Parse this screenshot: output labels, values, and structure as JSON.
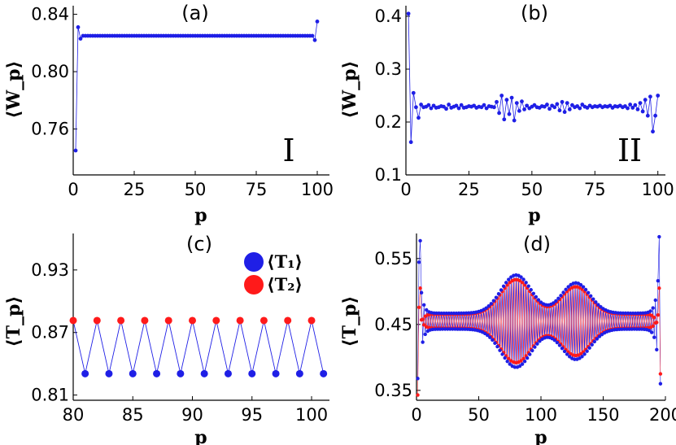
{
  "colors": {
    "blue": "#1f1fe6",
    "red": "#ff1a1a",
    "axis": "#000000"
  },
  "chart_data": [
    {
      "id": "a",
      "type": "line",
      "title": "(a)",
      "annotation": "I",
      "xlabel": "p",
      "ylabel": "⟨W_p⟩",
      "xlim": [
        0,
        105
      ],
      "ylim": [
        0.728,
        0.846
      ],
      "xticks": [
        0,
        25,
        50,
        75,
        100
      ],
      "xtick_labels": [
        "0",
        "25",
        "50",
        "75",
        "100"
      ],
      "yticks": [
        0.76,
        0.8,
        0.84
      ],
      "ytick_labels": [
        "0.76",
        "0.80",
        "0.84"
      ],
      "series": [
        {
          "name": "W_p",
          "color": "#1f1fe6",
          "x": [
            1,
            2,
            3,
            4,
            5,
            6,
            7,
            8,
            9,
            10,
            11,
            12,
            13,
            14,
            15,
            16,
            17,
            18,
            19,
            20,
            21,
            22,
            23,
            24,
            25,
            26,
            27,
            28,
            29,
            30,
            31,
            32,
            33,
            34,
            35,
            36,
            37,
            38,
            39,
            40,
            41,
            42,
            43,
            44,
            45,
            46,
            47,
            48,
            49,
            50,
            51,
            52,
            53,
            54,
            55,
            56,
            57,
            58,
            59,
            60,
            61,
            62,
            63,
            64,
            65,
            66,
            67,
            68,
            69,
            70,
            71,
            72,
            73,
            74,
            75,
            76,
            77,
            78,
            79,
            80,
            81,
            82,
            83,
            84,
            85,
            86,
            87,
            88,
            89,
            90,
            91,
            92,
            93,
            94,
            95,
            96,
            97,
            98,
            99,
            100
          ],
          "y": [
            0.745,
            0.831,
            0.823,
            0.825,
            0.825,
            0.825,
            0.825,
            0.825,
            0.825,
            0.825,
            0.825,
            0.825,
            0.825,
            0.825,
            0.825,
            0.825,
            0.825,
            0.825,
            0.825,
            0.825,
            0.825,
            0.825,
            0.825,
            0.825,
            0.825,
            0.825,
            0.825,
            0.825,
            0.825,
            0.825,
            0.825,
            0.825,
            0.825,
            0.825,
            0.825,
            0.825,
            0.825,
            0.825,
            0.825,
            0.825,
            0.825,
            0.825,
            0.825,
            0.825,
            0.825,
            0.825,
            0.825,
            0.825,
            0.825,
            0.825,
            0.825,
            0.825,
            0.825,
            0.825,
            0.825,
            0.825,
            0.825,
            0.825,
            0.825,
            0.825,
            0.825,
            0.825,
            0.825,
            0.825,
            0.825,
            0.825,
            0.825,
            0.825,
            0.825,
            0.825,
            0.825,
            0.825,
            0.825,
            0.825,
            0.825,
            0.825,
            0.825,
            0.825,
            0.825,
            0.825,
            0.825,
            0.825,
            0.825,
            0.825,
            0.825,
            0.825,
            0.825,
            0.825,
            0.825,
            0.825,
            0.825,
            0.825,
            0.825,
            0.825,
            0.825,
            0.825,
            0.825,
            0.825,
            0.822,
            0.835
          ]
        }
      ]
    },
    {
      "id": "b",
      "type": "line",
      "title": "(b)",
      "annotation": "II",
      "xlabel": "p",
      "ylabel": "⟨W_p⟩",
      "xlim": [
        0,
        103
      ],
      "ylim": [
        0.1,
        0.42
      ],
      "xticks": [
        0,
        25,
        50,
        75,
        100
      ],
      "xtick_labels": [
        "0",
        "25",
        "50",
        "75",
        "100"
      ],
      "yticks": [
        0.1,
        0.2,
        0.3,
        0.4
      ],
      "ytick_labels": [
        "0.1",
        "0.2",
        "0.3",
        "0.4"
      ],
      "series": [
        {
          "name": "W_p",
          "color": "#1f1fe6",
          "x": [
            1,
            2,
            3,
            4,
            5,
            6,
            7,
            8,
            9,
            10,
            11,
            12,
            13,
            14,
            15,
            16,
            17,
            18,
            19,
            20,
            21,
            22,
            23,
            24,
            25,
            26,
            27,
            28,
            29,
            30,
            31,
            32,
            33,
            34,
            35,
            36,
            37,
            38,
            39,
            40,
            41,
            42,
            43,
            44,
            45,
            46,
            47,
            48,
            49,
            50,
            51,
            52,
            53,
            54,
            55,
            56,
            57,
            58,
            59,
            60,
            61,
            62,
            63,
            64,
            65,
            66,
            67,
            68,
            69,
            70,
            71,
            72,
            73,
            74,
            75,
            76,
            77,
            78,
            79,
            80,
            81,
            82,
            83,
            84,
            85,
            86,
            87,
            88,
            89,
            90,
            91,
            92,
            93,
            94,
            95,
            96,
            97,
            98,
            99,
            100
          ],
          "y": [
            0.405,
            0.162,
            0.255,
            0.228,
            0.208,
            0.233,
            0.228,
            0.229,
            0.232,
            0.226,
            0.231,
            0.227,
            0.228,
            0.23,
            0.229,
            0.225,
            0.233,
            0.227,
            0.229,
            0.231,
            0.226,
            0.232,
            0.227,
            0.228,
            0.23,
            0.229,
            0.231,
            0.227,
            0.229,
            0.228,
            0.232,
            0.226,
            0.23,
            0.229,
            0.228,
            0.238,
            0.217,
            0.25,
            0.205,
            0.242,
            0.215,
            0.246,
            0.203,
            0.236,
            0.221,
            0.239,
            0.224,
            0.231,
            0.226,
            0.229,
            0.232,
            0.228,
            0.227,
            0.23,
            0.229,
            0.233,
            0.225,
            0.231,
            0.228,
            0.234,
            0.222,
            0.238,
            0.219,
            0.236,
            0.224,
            0.232,
            0.228,
            0.23,
            0.226,
            0.233,
            0.229,
            0.227,
            0.231,
            0.228,
            0.23,
            0.229,
            0.231,
            0.228,
            0.23,
            0.229,
            0.231,
            0.227,
            0.23,
            0.229,
            0.231,
            0.228,
            0.23,
            0.226,
            0.233,
            0.227,
            0.232,
            0.224,
            0.236,
            0.22,
            0.242,
            0.212,
            0.248,
            0.182,
            0.212,
            0.25
          ]
        }
      ]
    },
    {
      "id": "c",
      "type": "line",
      "title": "(c)",
      "xlabel": "p",
      "ylabel": "⟨T_p⟩",
      "xlim": [
        80,
        101.5
      ],
      "ylim": [
        0.805,
        0.965
      ],
      "xticks": [
        80,
        85,
        90,
        95,
        100
      ],
      "xtick_labels": [
        "80",
        "85",
        "90",
        "95",
        "100"
      ],
      "yticks": [
        0.81,
        0.87,
        0.93
      ],
      "ytick_labels": [
        "0.81",
        "0.87",
        "0.93"
      ],
      "legend": [
        {
          "label": "⟨T₁⟩",
          "color": "#1f1fe6"
        },
        {
          "label": "⟨T₂⟩",
          "color": "#ff1a1a"
        }
      ],
      "line": {
        "x": [
          80,
          81,
          82,
          83,
          84,
          85,
          86,
          87,
          88,
          89,
          90,
          91,
          92,
          93,
          94,
          95,
          96,
          97,
          98,
          99,
          100,
          101
        ],
        "y": [
          0.8815,
          0.8305,
          0.8815,
          0.8305,
          0.8815,
          0.8305,
          0.8815,
          0.8305,
          0.8815,
          0.8305,
          0.8815,
          0.8305,
          0.8815,
          0.8305,
          0.8815,
          0.8305,
          0.8815,
          0.8305,
          0.8815,
          0.8305,
          0.8815,
          0.8305
        ]
      },
      "series": [
        {
          "name": "T1",
          "color": "#1f1fe6",
          "x": [
            81,
            83,
            85,
            87,
            89,
            91,
            93,
            95,
            97,
            99,
            101
          ],
          "y": [
            0.8305,
            0.8305,
            0.8305,
            0.8305,
            0.8305,
            0.8305,
            0.8305,
            0.8305,
            0.8305,
            0.8305,
            0.8305
          ]
        },
        {
          "name": "T2",
          "color": "#ff1a1a",
          "x": [
            80,
            82,
            84,
            86,
            88,
            90,
            92,
            94,
            96,
            98,
            100
          ],
          "y": [
            0.8815,
            0.8815,
            0.8815,
            0.8815,
            0.8815,
            0.8815,
            0.8815,
            0.8815,
            0.8815,
            0.8815,
            0.8815
          ]
        }
      ]
    },
    {
      "id": "d",
      "type": "line",
      "title": "(d)",
      "xlabel": "p",
      "ylabel": "⟨T_p⟩",
      "xlim": [
        0,
        200
      ],
      "ylim": [
        0.335,
        0.588
      ],
      "xticks": [
        0,
        50,
        100,
        150,
        200
      ],
      "xtick_labels": [
        "0",
        "50",
        "100",
        "150",
        "200"
      ],
      "yticks": [
        0.35,
        0.45,
        0.55
      ],
      "ytick_labels": [
        "0.35",
        "0.45",
        "0.55"
      ],
      "envelope": {
        "p_start": 1,
        "p_end": 196,
        "base": 0.455,
        "spike_amplitude": 0.122,
        "red_spike_amplitude": 0.05,
        "bumps": [
          {
            "center": 80,
            "width": 17,
            "height": 0.058
          },
          {
            "center": 128,
            "width": 16,
            "height": 0.046
          }
        ],
        "alternation": 0.012
      },
      "series": [
        {
          "name": "T1",
          "color": "#1f1fe6"
        },
        {
          "name": "T2",
          "color": "#ff1a1a"
        }
      ]
    }
  ]
}
